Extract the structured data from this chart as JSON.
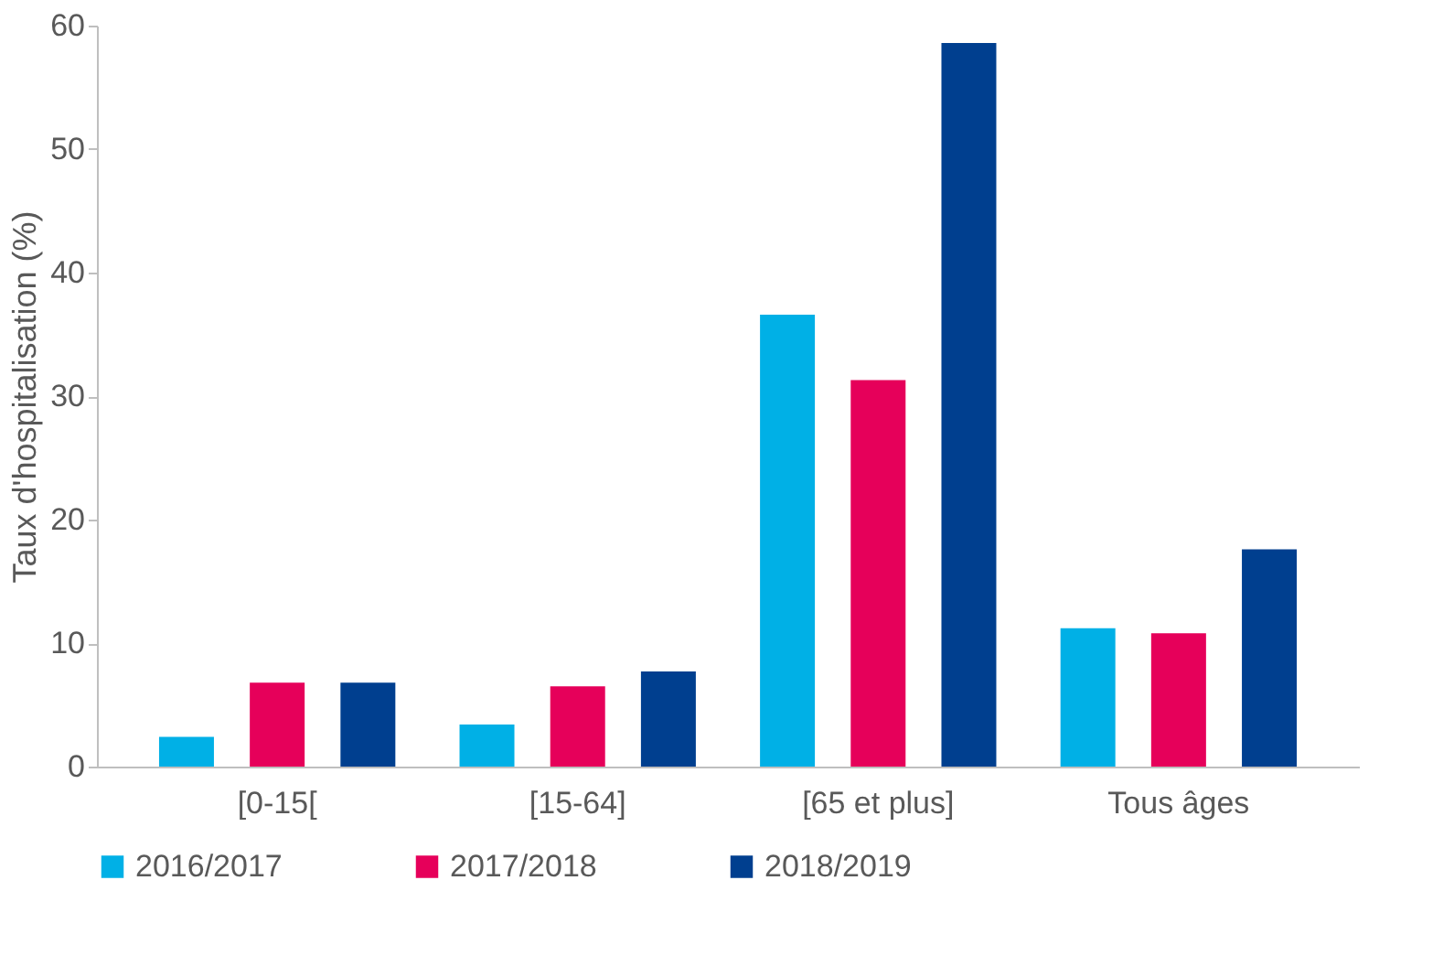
{
  "chart_data": {
    "type": "bar",
    "ylabel": "Taux d'hospitalisation (%)",
    "categories": [
      "[0-15[",
      "[15-64]",
      "[65 et plus]",
      "Tous âges"
    ],
    "series": [
      {
        "name": "2016/2017",
        "color": "#00b0e6",
        "values": [
          2.4,
          3.4,
          36.6,
          11.2
        ]
      },
      {
        "name": "2017/2018",
        "color": "#e6005a",
        "values": [
          6.8,
          6.5,
          31.3,
          10.8
        ]
      },
      {
        "name": "2018/2019",
        "color": "#003f8f",
        "values": [
          6.8,
          7.7,
          58.6,
          17.6
        ]
      }
    ],
    "ylim": [
      0,
      60
    ],
    "yticks": [
      0,
      10,
      20,
      30,
      40,
      50,
      60
    ],
    "grid": false,
    "legend": "bottom"
  }
}
